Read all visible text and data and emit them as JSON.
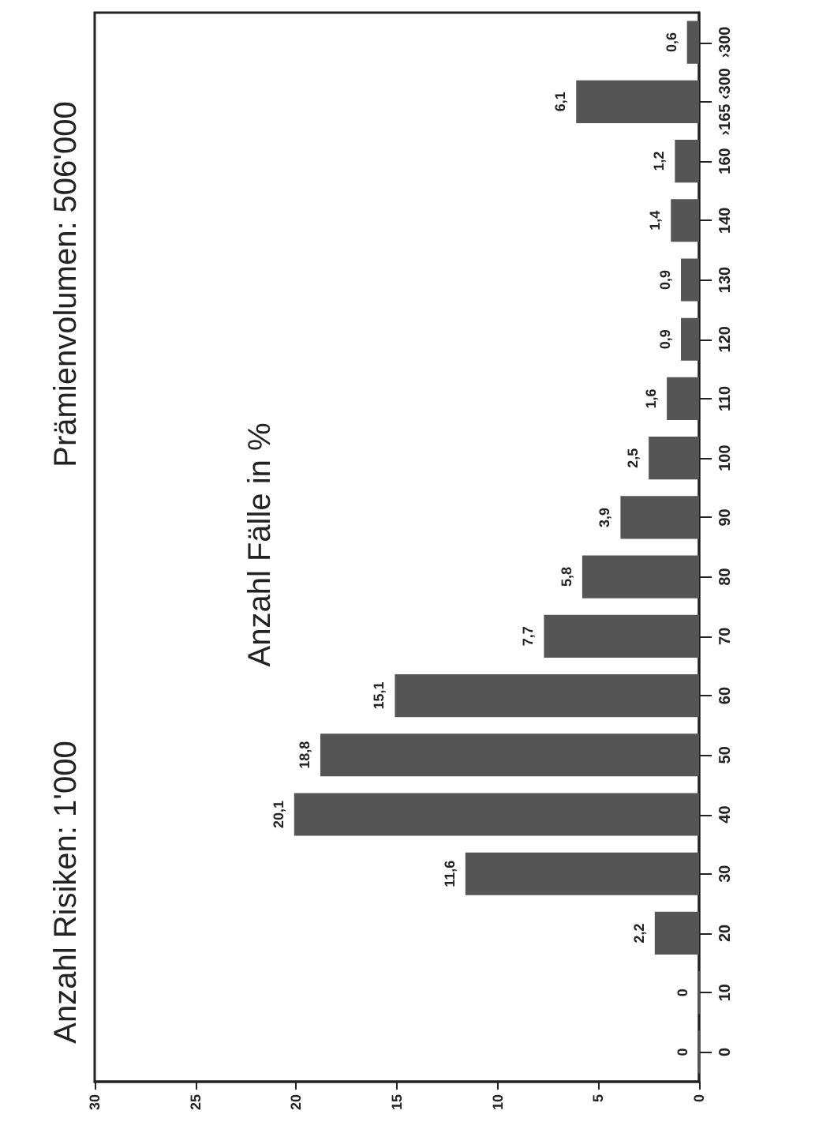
{
  "chart_data": {
    "type": "bar",
    "orientation": "horizontal",
    "title": "Anzahl Risiken: 1'000",
    "subtitle": "Prämienvolumen: 506'000",
    "annotations": [
      "Anzahl Fälle in %"
    ],
    "categories": [
      "›300",
      "›165 ‹300",
      "160",
      "140",
      "130",
      "120",
      "110",
      "100",
      "90",
      "80",
      "70",
      "60",
      "50",
      "40",
      "30",
      "20",
      "10",
      "0"
    ],
    "values": [
      0.6,
      6.1,
      1.2,
      1.4,
      0.9,
      0.9,
      1.6,
      2.5,
      3.9,
      5.8,
      7.7,
      15.1,
      18.8,
      20.1,
      11.6,
      2.2,
      0,
      0
    ],
    "value_labels": [
      "0,6",
      "6,1",
      "1,2",
      "1,4",
      "0,9",
      "0,9",
      "1,6",
      "2,5",
      "3,9",
      "5,8",
      "7,7",
      "15,1",
      "18,8",
      "20,1",
      "11,6",
      "2,2",
      "0",
      "0"
    ],
    "color": "#555555",
    "xlim": [
      30,
      0
    ],
    "xticks": [
      30,
      25,
      20,
      15,
      10,
      5,
      0
    ]
  }
}
